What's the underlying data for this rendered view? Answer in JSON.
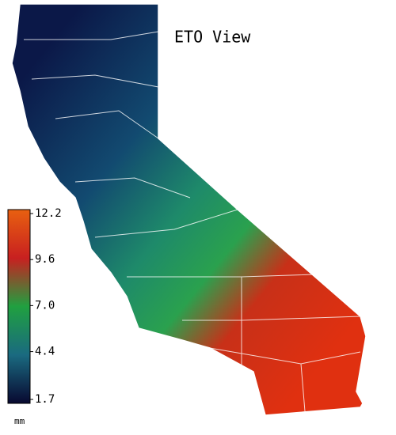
{
  "title": "ETO View",
  "colorbar": {
    "lim": [
      1.7,
      12.2
    ],
    "ticks": [
      1.7,
      4.4,
      {
        "value": 7,
        "label": "7.0"
      },
      9.6,
      12.2
    ],
    "unit": "mm"
  }
}
